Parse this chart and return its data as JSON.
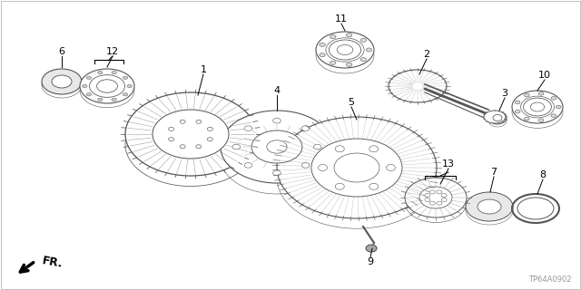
{
  "background_color": "#ffffff",
  "border_color": "#cccccc",
  "line_color": "#555555",
  "label_color": "#000000",
  "diagram_code": "TP64A0902",
  "fr_label": "FR.",
  "figsize": [
    6.4,
    3.2
  ],
  "dpi": 100
}
